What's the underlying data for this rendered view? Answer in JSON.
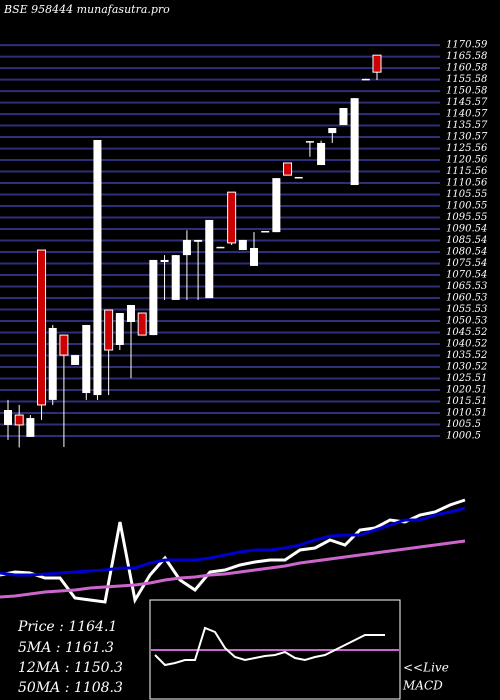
{
  "title": "BSE 958444 munafasutra.pro",
  "chart_data": [
    {
      "type": "candlestick",
      "up_color": "#ffffff",
      "down_color": "#cc0000",
      "grid_color": "#2e2e7a",
      "ylim": [
        994.4,
        1172.8
      ],
      "yticks": [
        1000.5,
        1005.5,
        1010.51,
        1015.51,
        1020.51,
        1025.51,
        1030.52,
        1035.52,
        1040.52,
        1045.52,
        1050.53,
        1055.53,
        1060.53,
        1065.53,
        1070.54,
        1075.54,
        1080.54,
        1085.54,
        1090.54,
        1095.55,
        1100.55,
        1105.55,
        1110.56,
        1115.56,
        1120.56,
        1125.56,
        1130.57,
        1135.57,
        1140.57,
        1145.57,
        1150.58,
        1155.58,
        1160.58,
        1165.58,
        1170.59
      ],
      "grid": true,
      "open": [
        1005.3,
        1009.6,
        1000.1,
        1081.4,
        1016.2,
        1044.4,
        1031.4,
        1019.2,
        1018.3,
        1055.3,
        1040.1,
        1050.1,
        1054.0,
        1044.4,
        1076.2,
        1059.7,
        1079.2,
        1085.0,
        1060.5,
        1082.3,
        1106.6,
        1081.4,
        1074.5,
        1089.2,
        1089.2,
        1119.3,
        1112.7,
        1128.4,
        1118.4,
        1132.3,
        1135.8,
        1109.7,
        1155.4,
        1166.2
      ],
      "high": [
        1016.2,
        1014.0,
        1009.6,
        1081.4,
        1048.8,
        1044.4,
        1035.7,
        1048.8,
        1129.3,
        1055.3,
        1054.0,
        1057.5,
        1054.0,
        1077.1,
        1079.2,
        1079.2,
        1090.0,
        1085.8,
        1094.5,
        1082.8,
        1106.6,
        1085.8,
        1089.2,
        1089.7,
        1112.7,
        1119.3,
        1113.2,
        1128.8,
        1129.0,
        1134.5,
        1143.2,
        1147.5,
        1155.9,
        1166.2
      ],
      "low": [
        998.8,
        995.5,
        1000.1,
        1007.5,
        1014.0,
        995.7,
        1031.4,
        1016.2,
        1016.2,
        1018.3,
        1037.9,
        1025.7,
        1044.4,
        1044.4,
        1059.7,
        1059.7,
        1059.7,
        1059.7,
        1060.5,
        1082.3,
        1083.6,
        1081.4,
        1074.5,
        1089.2,
        1089.2,
        1114.0,
        1112.7,
        1122.0,
        1118.4,
        1128.0,
        1135.8,
        1109.7,
        1155.4,
        1155.4
      ],
      "close": [
        1011.8,
        1005.3,
        1008.3,
        1014.0,
        1047.5,
        1035.7,
        1035.7,
        1048.8,
        1129.3,
        1037.9,
        1054.0,
        1057.5,
        1044.4,
        1077.1,
        1077.1,
        1079.2,
        1085.8,
        1085.8,
        1094.5,
        1082.8,
        1084.5,
        1085.8,
        1082.3,
        1089.7,
        1112.7,
        1114.0,
        1113.2,
        1128.8,
        1128.0,
        1134.5,
        1143.2,
        1147.5,
        1155.9,
        1158.8
      ]
    },
    {
      "type": "line",
      "ylim": [
        0,
        140
      ],
      "series": [
        {
          "color": "#ffffff",
          "values": [
            45,
            48,
            47,
            42,
            42,
            22,
            20,
            18,
            98,
            20,
            45,
            62,
            40,
            30,
            48,
            50,
            55,
            58,
            60,
            60,
            70,
            72,
            80,
            75,
            90,
            92,
            100,
            98,
            105,
            108,
            115,
            120
          ]
        },
        {
          "color": "#0000cc",
          "values": [
            47,
            45,
            45,
            46,
            47,
            48,
            49,
            50,
            52,
            52,
            57,
            60,
            60,
            60,
            62,
            65,
            68,
            70,
            70,
            72,
            75,
            80,
            84,
            85,
            85,
            90,
            95,
            100,
            100,
            105,
            108,
            112
          ]
        },
        {
          "color": "#cc66cc",
          "values": [
            23,
            24,
            26,
            28,
            29,
            30,
            32,
            33,
            34,
            35,
            37,
            40,
            42,
            43,
            45,
            46,
            48,
            50,
            52,
            54,
            57,
            59,
            61,
            63,
            65,
            67,
            69,
            71,
            73,
            75,
            77,
            79
          ]
        }
      ]
    },
    {
      "type": "macd",
      "ylim": [
        0,
        100
      ],
      "signal": 50,
      "signal_color": "#cc66cc",
      "series": [
        {
          "color": "#ffffff",
          "values": [
            45,
            35,
            37,
            40,
            40,
            72,
            68,
            52,
            43,
            40,
            42,
            44,
            45,
            48,
            42,
            40,
            43,
            45,
            50,
            55,
            60,
            65,
            65,
            65
          ]
        }
      ]
    }
  ],
  "stats": [
    "Price  : 1164.1",
    "5MA : 1161.3",
    "12MA : 1150.3",
    "50MA : 1108.3"
  ],
  "live": "<<Live",
  "macd_label": "MACD"
}
